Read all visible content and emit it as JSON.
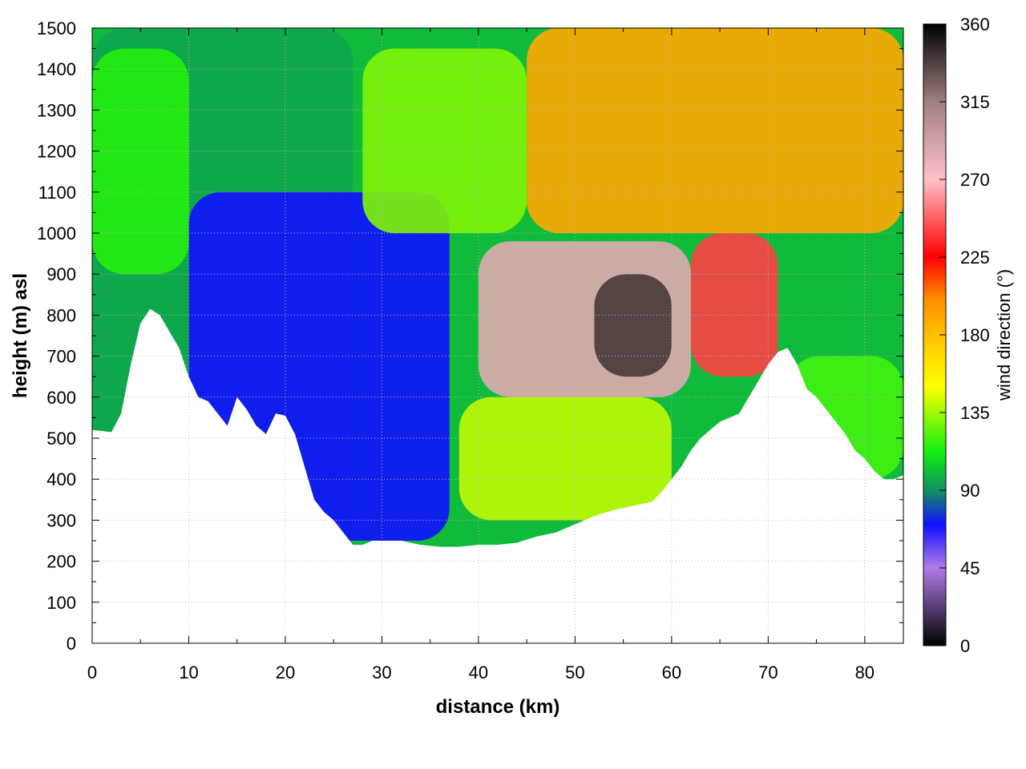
{
  "chart_data": {
    "type": "heatmap",
    "title": "",
    "xlabel": "distance (km)",
    "ylabel": "height (m) asl",
    "xlim": [
      0,
      84
    ],
    "ylim": [
      0,
      1500
    ],
    "x_ticks": [
      "0",
      "10",
      "20",
      "30",
      "40",
      "50",
      "60",
      "70",
      "80"
    ],
    "y_ticks": [
      "0",
      "100",
      "200",
      "300",
      "400",
      "500",
      "600",
      "700",
      "800",
      "900",
      "1000",
      "1100",
      "1200",
      "1300",
      "1400",
      "1500"
    ],
    "grid": true,
    "colorbar": {
      "label": "wind direction (°)",
      "range": [
        0,
        360
      ],
      "ticks": [
        "0",
        "45",
        "90",
        "135",
        "180",
        "225",
        "270",
        "315",
        "360"
      ],
      "colors": [
        {
          "value": 0,
          "color": "#000000"
        },
        {
          "value": 45,
          "color": "#b07ce8"
        },
        {
          "value": 70,
          "color": "#1010ff"
        },
        {
          "value": 90,
          "color": "#109060"
        },
        {
          "value": 112,
          "color": "#10ee10"
        },
        {
          "value": 150,
          "color": "#ffff00"
        },
        {
          "value": 180,
          "color": "#ffc000"
        },
        {
          "value": 200,
          "color": "#ff9000"
        },
        {
          "value": 225,
          "color": "#ff0000"
        },
        {
          "value": 270,
          "color": "#ffc0c8"
        },
        {
          "value": 315,
          "color": "#a08080"
        },
        {
          "value": 360,
          "color": "#000000"
        }
      ]
    },
    "terrain": {
      "x": [
        0,
        2,
        3,
        4,
        5,
        6,
        7,
        8,
        9,
        10,
        11,
        12,
        13,
        14,
        15,
        16,
        17,
        18,
        19,
        20,
        21,
        22,
        23,
        24,
        25,
        26,
        27,
        28,
        29,
        30,
        32,
        34,
        36,
        38,
        40,
        42,
        44,
        46,
        48,
        50,
        52,
        54,
        56,
        58,
        59,
        60,
        61,
        62,
        63,
        64,
        65,
        66,
        67,
        68,
        69,
        70,
        71,
        72,
        73,
        74,
        75,
        76,
        77,
        78,
        79,
        80,
        81,
        82,
        83,
        84
      ],
      "height": [
        520,
        515,
        560,
        680,
        780,
        815,
        800,
        760,
        720,
        650,
        600,
        590,
        560,
        530,
        600,
        570,
        530,
        510,
        560,
        555,
        510,
        430,
        350,
        320,
        300,
        270,
        240,
        240,
        250,
        250,
        250,
        240,
        235,
        235,
        240,
        240,
        245,
        260,
        270,
        290,
        310,
        325,
        335,
        345,
        370,
        400,
        430,
        470,
        500,
        520,
        540,
        550,
        560,
        600,
        640,
        680,
        710,
        720,
        680,
        620,
        600,
        570,
        540,
        510,
        470,
        450,
        420,
        400,
        400,
        410
      ]
    },
    "regions": [
      {
        "x_range": [
          0,
          27
        ],
        "dominant_direction_deg": 95
      },
      {
        "x_range": [
          0,
          10
        ],
        "height_range": [
          900,
          1450
        ],
        "dominant_direction_deg": 115
      },
      {
        "x_range": [
          10,
          37
        ],
        "height_range": [
          250,
          1100
        ],
        "dominant_direction_deg": 70
      },
      {
        "x_range": [
          28,
          45
        ],
        "height_range": [
          1000,
          1450
        ],
        "dominant_direction_deg": 130
      },
      {
        "x_range": [
          45,
          84
        ],
        "height_range": [
          1000,
          1500
        ],
        "dominant_direction_deg": 190
      },
      {
        "x_range": [
          40,
          62
        ],
        "height_range": [
          600,
          980
        ],
        "dominant_direction_deg": 285
      },
      {
        "x_range": [
          52,
          60
        ],
        "height_range": [
          650,
          900
        ],
        "dominant_direction_deg": 340
      },
      {
        "x_range": [
          62,
          71
        ],
        "height_range": [
          650,
          1000
        ],
        "dominant_direction_deg": 240
      },
      {
        "x_range": [
          38,
          60
        ],
        "height_range": [
          300,
          600
        ],
        "dominant_direction_deg": 140
      },
      {
        "x_range": [
          72,
          84
        ],
        "height_range": [
          400,
          700
        ],
        "dominant_direction_deg": 120
      }
    ]
  }
}
